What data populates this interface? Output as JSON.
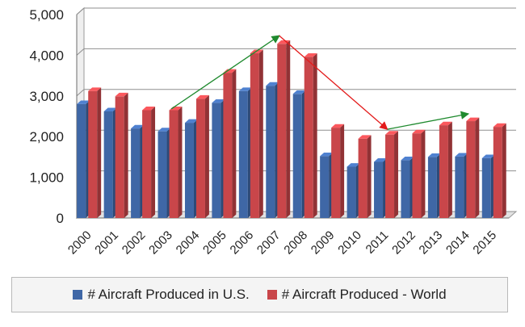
{
  "chart_data": {
    "type": "bar",
    "title": "",
    "xlabel": "",
    "ylabel": "",
    "categories": [
      "2000",
      "2001",
      "2002",
      "2003",
      "2004",
      "2005",
      "2006",
      "2007",
      "2008",
      "2009",
      "2010",
      "2011",
      "2012",
      "2013",
      "2014",
      "2015"
    ],
    "series": [
      {
        "name": "# Aircraft Produced in U.S.",
        "color": "#3f67a6",
        "values": [
          2800,
          2620,
          2200,
          2130,
          2340,
          2830,
          3120,
          3250,
          3050,
          1520,
          1260,
          1380,
          1420,
          1500,
          1510,
          1470
        ]
      },
      {
        "name": "# Aircraft Produced - World",
        "color": "#c9464a",
        "values": [
          3120,
          2990,
          2650,
          2650,
          2930,
          3570,
          4050,
          4280,
          3960,
          2220,
          1950,
          2050,
          2080,
          2280,
          2380,
          2240
        ]
      }
    ],
    "yticks": [
      "0",
      "1,000",
      "2,000",
      "3,000",
      "4,000",
      "5,000"
    ],
    "ylim": [
      0,
      5000
    ],
    "grid": true,
    "legend_position": "bottom",
    "annotations": [
      {
        "kind": "trend-arrow",
        "color": "#1f8a2e",
        "from": {
          "x": "2003",
          "y": 2680
        },
        "to": {
          "x": "2007",
          "y": 4480
        }
      },
      {
        "kind": "trend-arrow",
        "color": "#e31b1b",
        "from": {
          "x": "2007",
          "y": 4480
        },
        "to": {
          "x": "2011",
          "y": 2180
        }
      },
      {
        "kind": "trend-arrow",
        "color": "#1f8a2e",
        "from": {
          "x": "2011",
          "y": 2180
        },
        "to": {
          "x": "2014",
          "y": 2560
        }
      }
    ]
  }
}
